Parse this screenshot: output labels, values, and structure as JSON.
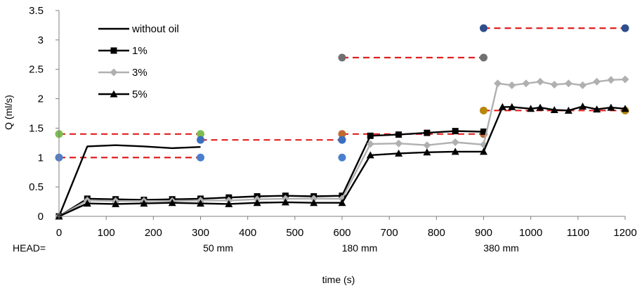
{
  "chart_data": {
    "type": "line",
    "title": "",
    "xlabel": "time (s)",
    "ylabel": "Q (ml/s)",
    "xlim": [
      0,
      1200
    ],
    "ylim": [
      0,
      3.5
    ],
    "x_ticks": [
      0,
      100,
      200,
      300,
      400,
      500,
      600,
      700,
      800,
      900,
      1000,
      1100,
      1200
    ],
    "x_tick_labels": [
      "0",
      "100",
      "200",
      "300",
      "400",
      "500",
      "600",
      "700",
      "800",
      "900",
      "1000",
      "1100",
      "1200"
    ],
    "y_ticks": [
      0,
      0.5,
      1,
      1.5,
      2,
      2.5,
      3,
      3.5
    ],
    "y_tick_labels": [
      "0",
      "0.5",
      "1",
      "1.5",
      "2",
      "2.5",
      "3",
      "3.5"
    ],
    "grid": false,
    "legend_position": "top-left",
    "head_row": {
      "label": "HEAD=",
      "entries": [
        {
          "x": 300,
          "text": "50 mm"
        },
        {
          "x": 600,
          "text": "180 mm"
        },
        {
          "x": 900,
          "text": "380 mm"
        }
      ]
    },
    "series": [
      {
        "name": "without oil",
        "color": "#000000",
        "marker": "none",
        "points": [
          [
            0,
            0
          ],
          [
            60,
            1.19
          ],
          [
            120,
            1.21
          ],
          [
            180,
            1.19
          ],
          [
            240,
            1.16
          ],
          [
            300,
            1.18
          ]
        ]
      },
      {
        "name": "1%",
        "color": "#000000",
        "marker": "square",
        "points": [
          [
            0,
            0
          ],
          [
            60,
            0.3
          ],
          [
            120,
            0.29
          ],
          [
            180,
            0.28
          ],
          [
            240,
            0.29
          ],
          [
            300,
            0.3
          ],
          [
            360,
            0.32
          ],
          [
            420,
            0.34
          ],
          [
            480,
            0.35
          ],
          [
            540,
            0.34
          ],
          [
            600,
            0.35
          ],
          [
            660,
            1.37
          ],
          [
            720,
            1.39
          ],
          [
            780,
            1.42
          ],
          [
            840,
            1.45
          ],
          [
            900,
            1.44
          ]
        ]
      },
      {
        "name": "3%",
        "color": "#b0b0b0",
        "marker": "diamond",
        "points": [
          [
            0,
            0
          ],
          [
            60,
            0.27
          ],
          [
            120,
            0.26
          ],
          [
            180,
            0.26
          ],
          [
            240,
            0.26
          ],
          [
            300,
            0.27
          ],
          [
            360,
            0.27
          ],
          [
            420,
            0.29
          ],
          [
            480,
            0.3
          ],
          [
            540,
            0.3
          ],
          [
            600,
            0.3
          ],
          [
            660,
            1.23
          ],
          [
            720,
            1.24
          ],
          [
            780,
            1.21
          ],
          [
            840,
            1.26
          ],
          [
            900,
            1.22
          ],
          [
            930,
            2.26
          ],
          [
            960,
            2.23
          ],
          [
            990,
            2.26
          ],
          [
            1020,
            2.29
          ],
          [
            1050,
            2.24
          ],
          [
            1080,
            2.26
          ],
          [
            1110,
            2.23
          ],
          [
            1140,
            2.29
          ],
          [
            1170,
            2.32
          ],
          [
            1200,
            2.33
          ]
        ]
      },
      {
        "name": "5%",
        "color": "#000000",
        "marker": "triangle",
        "points": [
          [
            0,
            0
          ],
          [
            60,
            0.22
          ],
          [
            120,
            0.21
          ],
          [
            180,
            0.22
          ],
          [
            240,
            0.23
          ],
          [
            300,
            0.22
          ],
          [
            360,
            0.21
          ],
          [
            420,
            0.23
          ],
          [
            480,
            0.24
          ],
          [
            540,
            0.23
          ],
          [
            600,
            0.23
          ],
          [
            660,
            1.04
          ],
          [
            720,
            1.07
          ],
          [
            780,
            1.09
          ],
          [
            840,
            1.1
          ],
          [
            900,
            1.1
          ],
          [
            940,
            1.86
          ],
          [
            960,
            1.86
          ],
          [
            1000,
            1.83
          ],
          [
            1020,
            1.85
          ],
          [
            1050,
            1.81
          ],
          [
            1080,
            1.8
          ],
          [
            1110,
            1.87
          ],
          [
            1140,
            1.82
          ],
          [
            1170,
            1.85
          ],
          [
            1200,
            1.83
          ]
        ]
      }
    ],
    "reference_lines": [
      {
        "x": [
          0,
          300
        ],
        "y": 1.4,
        "dot_color": "#7cbf4e"
      },
      {
        "x": [
          0,
          300
        ],
        "y": 1.0,
        "dot_color": "#4a7fd0"
      },
      {
        "x": [
          300,
          600
        ],
        "y": 1.3,
        "dot_color": "#3a6fbf"
      },
      {
        "x": [
          600,
          900
        ],
        "y": 2.7,
        "dot_color": "#707070"
      },
      {
        "x": [
          600,
          900
        ],
        "y": 1.4,
        "dot_color": "#c06a30"
      },
      {
        "x": [
          900,
          1200
        ],
        "y": 3.2,
        "dot_color": "#2e4e8c"
      },
      {
        "x": [
          900,
          1200
        ],
        "y": 1.8,
        "dot_color": "#b8860b"
      }
    ],
    "extra_dots": [
      {
        "x": 600,
        "y": 1.3,
        "color": "#3a6fbf"
      },
      {
        "x": 600,
        "y": 1.0,
        "color": "#4a7fd0"
      }
    ],
    "ref_line_color": "#e02020"
  }
}
